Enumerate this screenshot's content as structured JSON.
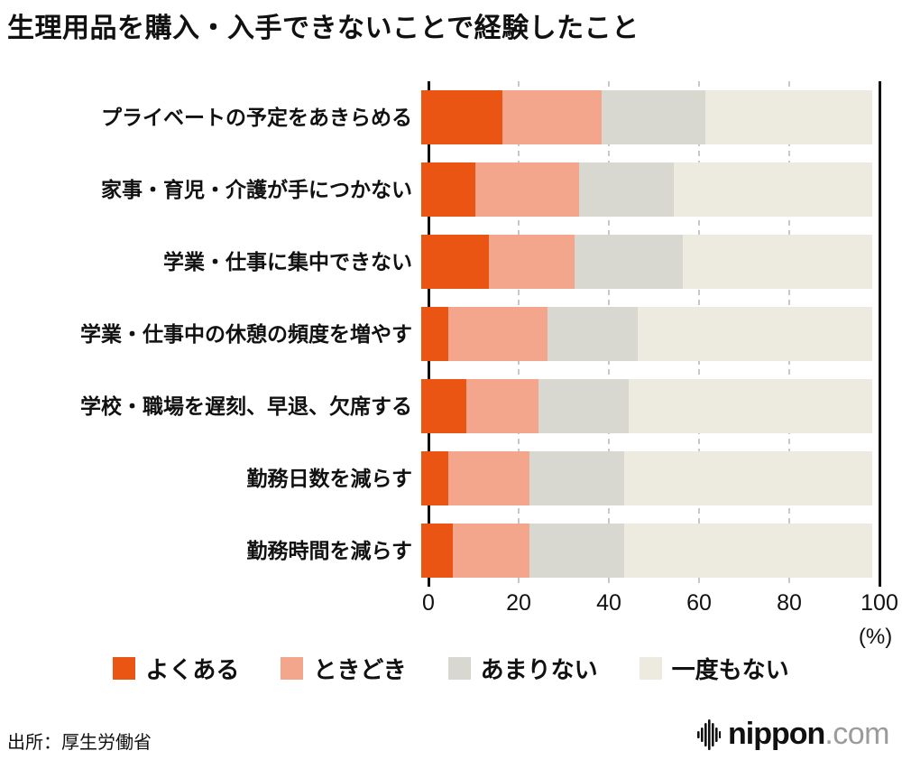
{
  "title": "生理用品を購入・入手できないことで経験したこと",
  "source": "出所：厚生労働省",
  "axis": {
    "unit_label": "(%)"
  },
  "logo": {
    "name": "nippon",
    "tld": ".com"
  },
  "legend": [
    {
      "label": "よくある",
      "color": "#ea5514"
    },
    {
      "label": "ときどき",
      "color": "#f4a68c"
    },
    {
      "label": "あまりない",
      "color": "#d8d8d0"
    },
    {
      "label": "一度もない",
      "color": "#edeae0"
    }
  ],
  "chart_data": {
    "type": "bar",
    "orientation": "horizontal",
    "stacked": true,
    "title": "生理用品を購入・入手できないことで経験したこと",
    "xlabel": "(%)",
    "ylabel": "",
    "xlim": [
      0,
      100
    ],
    "xticks": [
      0,
      20,
      40,
      60,
      80,
      100
    ],
    "grid": "vertical dashed at 20/40/60/80, solid axis lines at 0 and 100",
    "legend_position": "bottom",
    "categories": [
      "プライベートの予定をあきらめる",
      "家事・育児・介護が手につかない",
      "学業・仕事に集中できない",
      "学業・仕事中の休憩の頻度を増やす",
      "学校・職場を遅刻、早退、欠席する",
      "勤務日数を減らす",
      "勤務時間を減らす"
    ],
    "series": [
      {
        "name": "よくある",
        "color": "#ea5514",
        "values": [
          18,
          12,
          15,
          6,
          10,
          6,
          7
        ]
      },
      {
        "name": "ときどき",
        "color": "#f4a68c",
        "values": [
          22,
          23,
          19,
          22,
          16,
          18,
          17
        ]
      },
      {
        "name": "あまりない",
        "color": "#d8d8d0",
        "values": [
          23,
          21,
          24,
          20,
          20,
          21,
          21
        ]
      },
      {
        "name": "一度もない",
        "color": "#edeae0",
        "values": [
          37,
          44,
          42,
          52,
          54,
          55,
          55
        ]
      }
    ]
  }
}
